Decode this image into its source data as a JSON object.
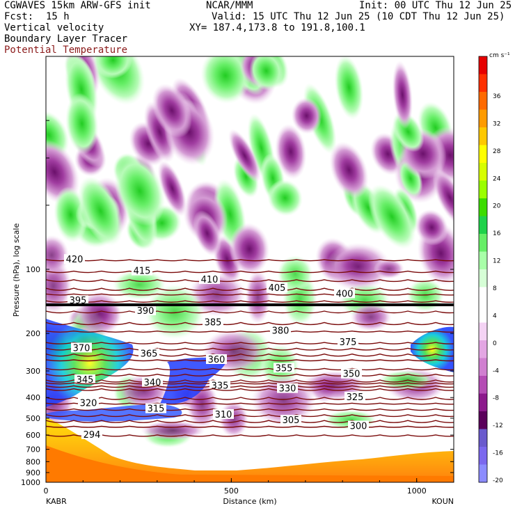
{
  "header": {
    "title": "CGWAVES 15km ARW-GFS init",
    "org": "NCAR/MMM",
    "init": "Init: 00 UTC Thu 12 Jun 25",
    "fcst_label": "Fcst:",
    "fcst_value": "15 h",
    "valid": "Valid: 15 UTC Thu 12 Jun 25 (10 CDT Thu 12 Jun 25)",
    "field1": "Vertical velocity",
    "xy": "XY= 187.4,173.8 to 191.8,100.1",
    "field2": "Boundary Layer Tracer",
    "field3": "Potential Temperature"
  },
  "colors": {
    "theta": "#7a0a0a",
    "frame": "#000000"
  },
  "chart_data": {
    "type": "heatmap",
    "xlabel": "Distance (km)",
    "ylabel": "Pressure (hPa), log scale",
    "xlim": [
      0,
      1100
    ],
    "ylim": [
      1000,
      10
    ],
    "y_scale": "log",
    "x_ticks": [
      "0",
      "500",
      "1000"
    ],
    "y_ticks": [
      "100",
      "200",
      "300",
      "400",
      "500",
      "600",
      "700",
      "800",
      "900",
      "1000"
    ],
    "endpoints": {
      "left": "KABR",
      "right": "KOUN"
    },
    "colorbar": {
      "unit": "cm s⁻¹",
      "labels": [
        "36",
        "32",
        "28",
        "24",
        "20",
        "16",
        "12",
        "8",
        "4",
        "0",
        "-4",
        "-8",
        "-12",
        "-16",
        "-20"
      ],
      "colors": [
        "#e60000",
        "#ff3000",
        "#ff6a00",
        "#ff9b00",
        "#ffc800",
        "#ffff00",
        "#d7ff00",
        "#9aff00",
        "#3cdc00",
        "#1fd24a",
        "#66ee66",
        "#a8ffa8",
        "#d6ffd6",
        "#ffffff",
        "#ffffff",
        "#f4d3f4",
        "#e3a6e3",
        "#d07fd0",
        "#b44cb4",
        "#8b198b",
        "#5a005a",
        "#6a5acd",
        "#7b68ee",
        "#8c8cff"
      ]
    },
    "theta_contours": [
      {
        "label": "420",
        "px": 390
      },
      {
        "label": "415",
        "px": 370
      },
      {
        "label": "410",
        "px": 355
      },
      {
        "label": "405",
        "px": 340
      },
      {
        "label": "400",
        "px": 330
      },
      {
        "label": "395",
        "px": 318
      },
      {
        "label": "390",
        "px": 300
      },
      {
        "label": "385",
        "px": 280
      },
      {
        "label": "380",
        "px": 265
      },
      {
        "label": "375",
        "px": 245
      },
      {
        "label": "370",
        "px": 230
      },
      {
        "label": "365",
        "px": 215
      },
      {
        "label": "360",
        "px": 200
      },
      {
        "label": "355",
        "px": 180
      },
      {
        "label": "350",
        "px": 165
      },
      {
        "label": "345",
        "px": 150
      },
      {
        "label": "340",
        "px": 140
      },
      {
        "label": "335",
        "px": 130
      },
      {
        "label": "330",
        "px": 120
      },
      {
        "label": "325",
        "px": 100
      },
      {
        "label": "320",
        "px": 85
      },
      {
        "label": "315",
        "px": 70
      },
      {
        "label": "310",
        "px": 55
      },
      {
        "label": "305",
        "px": 40
      },
      {
        "label": "300",
        "px": 25
      },
      {
        "label": "294",
        "px": 5
      }
    ]
  }
}
